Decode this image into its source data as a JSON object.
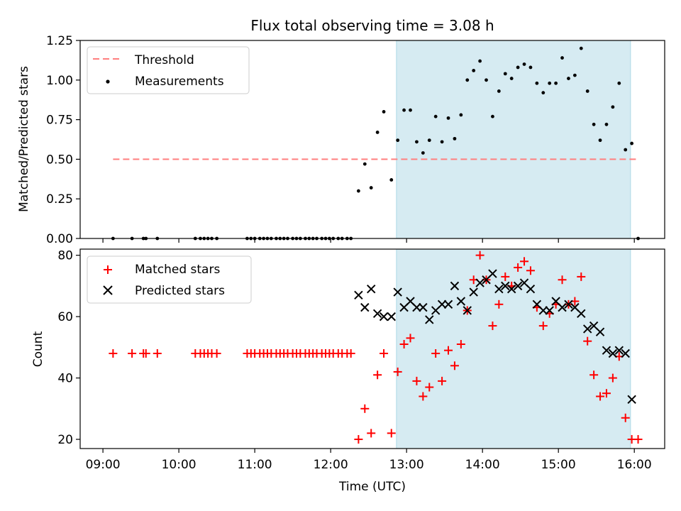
{
  "title": "Flux total observing time = 3.08 h",
  "colors": {
    "threshold": "#ff7f7f",
    "measurement": "#000000",
    "matched": "#ff0000",
    "predicted": "#000000",
    "span": "#add8e6"
  },
  "chart_data": [
    {
      "type": "scatter",
      "title": "Flux total observing time = 3.08 h",
      "xlabel": "",
      "ylabel": "Matched/Predicted stars",
      "xlim_hours": [
        8.7,
        16.4
      ],
      "ylim": [
        0,
        1.25
      ],
      "yticks": [
        0.0,
        0.25,
        0.5,
        0.75,
        1.0,
        1.25
      ],
      "ytick_labels": [
        "0.00",
        "0.25",
        "0.50",
        "0.75",
        "1.00",
        "1.25"
      ],
      "grid": false,
      "legend_position": "top-left",
      "shaded_span": {
        "x0": "12:52",
        "x1": "15:57"
      },
      "threshold": {
        "name": "Threshold",
        "y": 0.5,
        "x0": "09:08",
        "x1": "16:03"
      },
      "measurements": {
        "name": "Measurements",
        "points": [
          [
            "09:08",
            0
          ],
          [
            "09:23",
            0
          ],
          [
            "09:32",
            0
          ],
          [
            "09:34",
            0
          ],
          [
            "09:43",
            0
          ],
          [
            "10:13",
            0
          ],
          [
            "10:17",
            0
          ],
          [
            "10:20",
            0
          ],
          [
            "10:23",
            0
          ],
          [
            "10:26",
            0
          ],
          [
            "10:30",
            0
          ],
          [
            "10:54",
            0
          ],
          [
            "10:57",
            0
          ],
          [
            "11:00",
            0
          ],
          [
            "11:04",
            0
          ],
          [
            "11:07",
            0
          ],
          [
            "11:10",
            0
          ],
          [
            "11:13",
            0
          ],
          [
            "11:17",
            0
          ],
          [
            "11:20",
            0
          ],
          [
            "11:23",
            0
          ],
          [
            "11:26",
            0
          ],
          [
            "11:30",
            0
          ],
          [
            "11:33",
            0
          ],
          [
            "11:36",
            0
          ],
          [
            "11:40",
            0
          ],
          [
            "11:43",
            0
          ],
          [
            "11:46",
            0
          ],
          [
            "11:49",
            0
          ],
          [
            "11:53",
            0
          ],
          [
            "11:56",
            0
          ],
          [
            "11:59",
            0
          ],
          [
            "12:02",
            0
          ],
          [
            "12:06",
            0
          ],
          [
            "12:09",
            0
          ],
          [
            "12:13",
            0
          ],
          [
            "12:16",
            0
          ],
          [
            "12:22",
            0.3
          ],
          [
            "12:27",
            0.47
          ],
          [
            "12:32",
            0.32
          ],
          [
            "12:37",
            0.67
          ],
          [
            "12:42",
            0.8
          ],
          [
            "12:48",
            0.37
          ],
          [
            "12:53",
            0.62
          ],
          [
            "12:58",
            0.81
          ],
          [
            "13:03",
            0.81
          ],
          [
            "13:08",
            0.61
          ],
          [
            "13:13",
            0.54
          ],
          [
            "13:18",
            0.62
          ],
          [
            "13:23",
            0.77
          ],
          [
            "13:28",
            0.61
          ],
          [
            "13:33",
            0.76
          ],
          [
            "13:38",
            0.63
          ],
          [
            "13:43",
            0.78
          ],
          [
            "13:48",
            1.0
          ],
          [
            "13:53",
            1.06
          ],
          [
            "13:58",
            1.12
          ],
          [
            "14:03",
            1.0
          ],
          [
            "14:08",
            0.77
          ],
          [
            "14:13",
            0.93
          ],
          [
            "14:18",
            1.04
          ],
          [
            "14:23",
            1.01
          ],
          [
            "14:28",
            1.08
          ],
          [
            "14:33",
            1.1
          ],
          [
            "14:38",
            1.08
          ],
          [
            "14:43",
            0.98
          ],
          [
            "14:48",
            0.92
          ],
          [
            "14:53",
            0.98
          ],
          [
            "14:58",
            0.98
          ],
          [
            "15:03",
            1.14
          ],
          [
            "15:08",
            1.01
          ],
          [
            "15:13",
            1.03
          ],
          [
            "15:18",
            1.2
          ],
          [
            "15:23",
            0.93
          ],
          [
            "15:28",
            0.72
          ],
          [
            "15:33",
            0.62
          ],
          [
            "15:38",
            0.72
          ],
          [
            "15:43",
            0.83
          ],
          [
            "15:48",
            0.98
          ],
          [
            "15:53",
            0.56
          ],
          [
            "15:58",
            0.6
          ],
          [
            "16:03",
            0
          ]
        ]
      }
    },
    {
      "type": "scatter",
      "xlabel": "Time (UTC)",
      "ylabel": "Count",
      "xlim_hours": [
        8.7,
        16.4
      ],
      "xticks": [
        "09:00",
        "10:00",
        "11:00",
        "12:00",
        "13:00",
        "14:00",
        "15:00",
        "16:00"
      ],
      "ylim": [
        17,
        82
      ],
      "yticks": [
        20,
        40,
        60,
        80
      ],
      "grid": false,
      "legend_position": "top-left",
      "shaded_span": {
        "x0": "12:52",
        "x1": "15:57"
      },
      "series": [
        {
          "name": "Matched stars",
          "marker": "plus",
          "points": [
            [
              "09:08",
              48
            ],
            [
              "09:23",
              48
            ],
            [
              "09:32",
              48
            ],
            [
              "09:34",
              48
            ],
            [
              "09:43",
              48
            ],
            [
              "10:13",
              48
            ],
            [
              "10:17",
              48
            ],
            [
              "10:20",
              48
            ],
            [
              "10:23",
              48
            ],
            [
              "10:26",
              48
            ],
            [
              "10:30",
              48
            ],
            [
              "10:54",
              48
            ],
            [
              "10:57",
              48
            ],
            [
              "11:00",
              48
            ],
            [
              "11:04",
              48
            ],
            [
              "11:07",
              48
            ],
            [
              "11:10",
              48
            ],
            [
              "11:13",
              48
            ],
            [
              "11:17",
              48
            ],
            [
              "11:20",
              48
            ],
            [
              "11:23",
              48
            ],
            [
              "11:26",
              48
            ],
            [
              "11:30",
              48
            ],
            [
              "11:33",
              48
            ],
            [
              "11:36",
              48
            ],
            [
              "11:40",
              48
            ],
            [
              "11:43",
              48
            ],
            [
              "11:46",
              48
            ],
            [
              "11:49",
              48
            ],
            [
              "11:53",
              48
            ],
            [
              "11:56",
              48
            ],
            [
              "11:59",
              48
            ],
            [
              "12:02",
              48
            ],
            [
              "12:06",
              48
            ],
            [
              "12:09",
              48
            ],
            [
              "12:13",
              48
            ],
            [
              "12:16",
              48
            ],
            [
              "12:22",
              20
            ],
            [
              "12:27",
              30
            ],
            [
              "12:32",
              22
            ],
            [
              "12:37",
              41
            ],
            [
              "12:42",
              48
            ],
            [
              "12:48",
              22
            ],
            [
              "12:53",
              42
            ],
            [
              "12:58",
              51
            ],
            [
              "13:03",
              53
            ],
            [
              "13:08",
              39
            ],
            [
              "13:13",
              34
            ],
            [
              "13:18",
              37
            ],
            [
              "13:23",
              48
            ],
            [
              "13:28",
              39
            ],
            [
              "13:33",
              49
            ],
            [
              "13:38",
              44
            ],
            [
              "13:43",
              51
            ],
            [
              "13:48",
              62
            ],
            [
              "13:53",
              72
            ],
            [
              "13:58",
              80
            ],
            [
              "14:03",
              72
            ],
            [
              "14:08",
              57
            ],
            [
              "14:13",
              64
            ],
            [
              "14:18",
              73
            ],
            [
              "14:23",
              70
            ],
            [
              "14:28",
              76
            ],
            [
              "14:33",
              78
            ],
            [
              "14:38",
              75
            ],
            [
              "14:43",
              63
            ],
            [
              "14:48",
              57
            ],
            [
              "14:53",
              61
            ],
            [
              "14:58",
              64
            ],
            [
              "15:03",
              72
            ],
            [
              "15:08",
              64
            ],
            [
              "15:13",
              65
            ],
            [
              "15:18",
              73
            ],
            [
              "15:23",
              52
            ],
            [
              "15:28",
              41
            ],
            [
              "15:33",
              34
            ],
            [
              "15:38",
              35
            ],
            [
              "15:43",
              40
            ],
            [
              "15:48",
              47
            ],
            [
              "15:53",
              27
            ],
            [
              "15:58",
              20
            ],
            [
              "16:03",
              20
            ]
          ]
        },
        {
          "name": "Predicted stars",
          "marker": "x",
          "points": [
            [
              "12:22",
              67
            ],
            [
              "12:27",
              63
            ],
            [
              "12:32",
              69
            ],
            [
              "12:37",
              61
            ],
            [
              "12:42",
              60
            ],
            [
              "12:48",
              60
            ],
            [
              "12:53",
              68
            ],
            [
              "12:58",
              63
            ],
            [
              "13:03",
              65
            ],
            [
              "13:08",
              63
            ],
            [
              "13:13",
              63
            ],
            [
              "13:18",
              59
            ],
            [
              "13:23",
              62
            ],
            [
              "13:28",
              64
            ],
            [
              "13:33",
              64
            ],
            [
              "13:38",
              70
            ],
            [
              "13:43",
              65
            ],
            [
              "13:48",
              62
            ],
            [
              "13:53",
              68
            ],
            [
              "13:58",
              71
            ],
            [
              "14:03",
              72
            ],
            [
              "14:08",
              74
            ],
            [
              "14:13",
              69
            ],
            [
              "14:18",
              70
            ],
            [
              "14:23",
              69
            ],
            [
              "14:28",
              70
            ],
            [
              "14:33",
              71
            ],
            [
              "14:38",
              69
            ],
            [
              "14:43",
              64
            ],
            [
              "14:48",
              62
            ],
            [
              "14:53",
              62
            ],
            [
              "14:58",
              65
            ],
            [
              "15:03",
              63
            ],
            [
              "15:08",
              64
            ],
            [
              "15:13",
              63
            ],
            [
              "15:18",
              61
            ],
            [
              "15:23",
              56
            ],
            [
              "15:28",
              57
            ],
            [
              "15:33",
              55
            ],
            [
              "15:38",
              49
            ],
            [
              "15:43",
              48
            ],
            [
              "15:48",
              49
            ],
            [
              "15:53",
              48
            ],
            [
              "15:58",
              33
            ]
          ]
        }
      ]
    }
  ]
}
